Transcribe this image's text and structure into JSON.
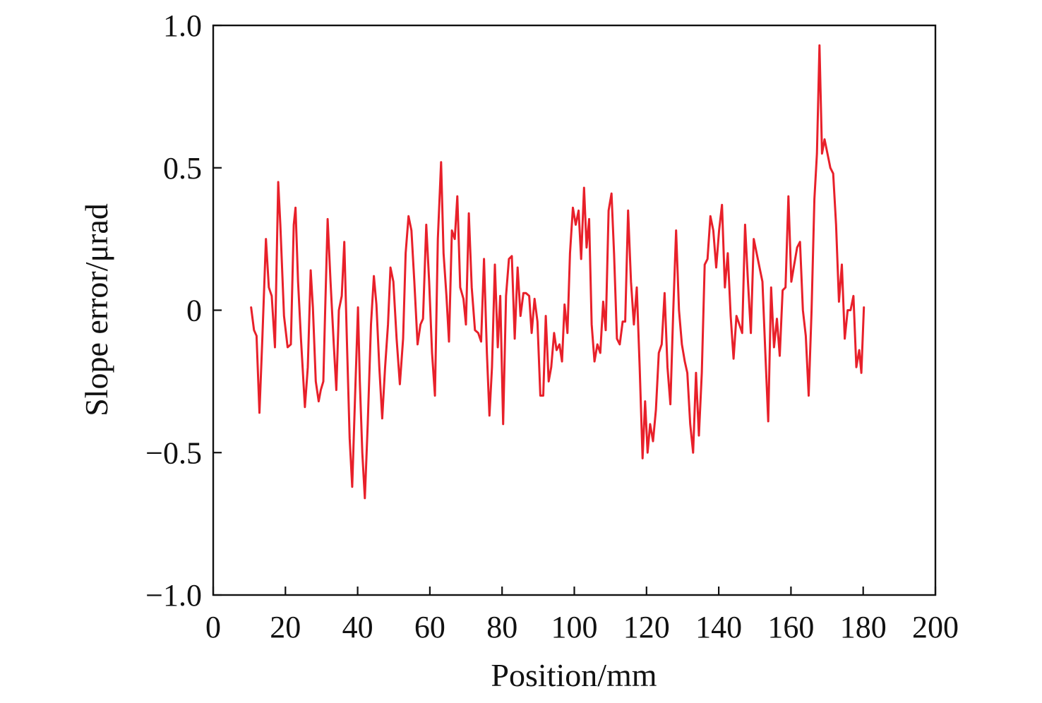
{
  "chart_data": {
    "type": "line",
    "title": "",
    "xlabel": "Position/mm",
    "ylabel": "Slope error/μrad",
    "xlim": [
      0,
      200
    ],
    "ylim": [
      -1.0,
      1.0
    ],
    "grid": false,
    "legend": "none",
    "x_ticks": [
      0,
      20,
      40,
      60,
      80,
      100,
      120,
      140,
      160,
      180,
      200
    ],
    "x_tick_labels": [
      "0",
      "20",
      "40",
      "60",
      "80",
      "100",
      "120",
      "140",
      "160",
      "180",
      "200"
    ],
    "y_ticks": [
      -1.0,
      -0.5,
      0,
      0.5,
      1.0
    ],
    "y_tick_labels": [
      "−1.0",
      "−0.5",
      "0",
      "0.5",
      "1.0"
    ],
    "series": [
      {
        "color": "#e8202a",
        "x": [
          10.5,
          11.3,
          12.0,
          12.8,
          13.6,
          14.6,
          15.4,
          16.2,
          17.1,
          18.0,
          18.6,
          19.6,
          20.6,
          21.5,
          22.3,
          22.8,
          23.5,
          24.3,
          25.4,
          26.2,
          27.0,
          27.6,
          28.4,
          29.2,
          29.8,
          30.5,
          31.0,
          31.7,
          32.5,
          33.4,
          34.1,
          34.8,
          35.6,
          36.3,
          37.0,
          37.8,
          38.5,
          39.3,
          40.1,
          40.6,
          41.3,
          42.0,
          42.8,
          43.7,
          44.5,
          45.2,
          46.0,
          46.8,
          47.6,
          48.4,
          49.1,
          49.9,
          50.8,
          51.7,
          52.6,
          53.3,
          54.1,
          54.9,
          55.7,
          56.6,
          57.4,
          58.1,
          59.0,
          59.8,
          60.6,
          61.4,
          62.2,
          63.1,
          63.8,
          64.6,
          65.3,
          66.1,
          66.9,
          67.6,
          68.4,
          69.3,
          70.0,
          70.8,
          71.6,
          72.5,
          73.4,
          74.2,
          75.0,
          75.8,
          76.5,
          77.2,
          78.0,
          78.8,
          79.5,
          80.3,
          81.1,
          81.9,
          82.7,
          83.5,
          84.3,
          85.1,
          85.9,
          86.6,
          87.5,
          88.2,
          89.0,
          89.8,
          90.6,
          91.4,
          92.1,
          92.9,
          93.6,
          94.4,
          95.1,
          95.9,
          96.6,
          97.3,
          98.1,
          98.8,
          99.6,
          100.4,
          101.2,
          101.9,
          102.7,
          103.4,
          104.1,
          104.8,
          105.6,
          106.4,
          107.2,
          108.0,
          108.7,
          109.5,
          110.3,
          111.0,
          111.8,
          112.6,
          113.4,
          114.1,
          114.9,
          115.7,
          116.5,
          117.3,
          118.1,
          118.9,
          119.6,
          120.3,
          121.0,
          121.8,
          122.6,
          123.4,
          124.2,
          125.0,
          125.8,
          126.6,
          127.4,
          128.2,
          129.0,
          129.8,
          130.6,
          131.3,
          132.1,
          132.9,
          133.7,
          134.5,
          135.3,
          136.1,
          136.9,
          137.7,
          138.5,
          139.3,
          140.1,
          140.9,
          141.7,
          142.5,
          143.3,
          144.1,
          144.9,
          145.7,
          146.5,
          147.3,
          148.1,
          148.9,
          149.7,
          150.5,
          151.3,
          152.1,
          152.9,
          153.7,
          154.5,
          155.3,
          156.1,
          156.9,
          157.7,
          158.5,
          159.3,
          160.1,
          160.9,
          161.7,
          162.5,
          163.3,
          164.1,
          164.9,
          165.7,
          166.5,
          167.2,
          167.9,
          168.6,
          169.3,
          170.1,
          170.9,
          171.7,
          172.5,
          173.3,
          174.1,
          174.9,
          175.7,
          176.5,
          177.3,
          178.1,
          178.9,
          179.5,
          180.2
        ],
        "y": [
          0.01,
          -0.07,
          -0.09,
          -0.36,
          -0.1,
          0.25,
          0.08,
          0.05,
          -0.13,
          0.45,
          0.3,
          -0.02,
          -0.13,
          -0.12,
          0.3,
          0.36,
          0.1,
          -0.1,
          -0.34,
          -0.2,
          0.14,
          0.01,
          -0.25,
          -0.32,
          -0.28,
          -0.25,
          0.0,
          0.32,
          0.1,
          -0.12,
          -0.28,
          0.0,
          0.05,
          0.24,
          -0.1,
          -0.45,
          -0.62,
          -0.3,
          0.01,
          -0.25,
          -0.5,
          -0.66,
          -0.4,
          -0.05,
          0.12,
          0.02,
          -0.2,
          -0.38,
          -0.2,
          -0.05,
          0.15,
          0.1,
          -0.1,
          -0.26,
          -0.1,
          0.2,
          0.33,
          0.28,
          0.1,
          -0.12,
          -0.05,
          -0.03,
          0.3,
          0.1,
          -0.15,
          -0.3,
          0.25,
          0.52,
          0.2,
          0.05,
          -0.11,
          0.28,
          0.25,
          0.4,
          0.08,
          0.04,
          -0.05,
          0.34,
          0.08,
          -0.07,
          -0.08,
          -0.11,
          0.18,
          -0.15,
          -0.37,
          -0.2,
          0.16,
          -0.13,
          0.05,
          -0.4,
          0.05,
          0.18,
          0.19,
          -0.1,
          0.15,
          -0.02,
          0.06,
          0.06,
          0.05,
          -0.08,
          0.04,
          -0.04,
          -0.3,
          -0.3,
          -0.02,
          -0.25,
          -0.2,
          -0.08,
          -0.14,
          -0.12,
          -0.18,
          0.02,
          -0.08,
          0.2,
          0.36,
          0.3,
          0.35,
          0.18,
          0.43,
          0.22,
          0.32,
          -0.05,
          -0.18,
          -0.12,
          -0.15,
          0.03,
          -0.07,
          0.35,
          0.41,
          0.2,
          -0.1,
          -0.12,
          -0.04,
          -0.04,
          0.35,
          0.1,
          -0.05,
          0.08,
          -0.2,
          -0.52,
          -0.32,
          -0.5,
          -0.4,
          -0.46,
          -0.35,
          -0.15,
          -0.12,
          0.06,
          -0.2,
          -0.33,
          0.0,
          0.28,
          0.0,
          -0.12,
          -0.18,
          -0.22,
          -0.4,
          -0.5,
          -0.22,
          -0.44,
          -0.22,
          0.16,
          0.18,
          0.33,
          0.28,
          0.15,
          0.28,
          0.37,
          0.08,
          0.2,
          -0.02,
          -0.17,
          -0.02,
          -0.05,
          -0.08,
          0.3,
          0.1,
          -0.08,
          0.25,
          0.2,
          0.15,
          0.1,
          -0.15,
          -0.39,
          0.08,
          -0.13,
          -0.03,
          -0.16,
          0.07,
          0.08,
          0.4,
          0.1,
          0.16,
          0.22,
          0.24,
          0.0,
          -0.09,
          -0.3,
          0.0,
          0.39,
          0.55,
          0.93,
          0.55,
          0.6,
          0.55,
          0.5,
          0.48,
          0.3,
          0.03,
          0.16,
          -0.1,
          0.0,
          0.0,
          0.05,
          -0.2,
          -0.14,
          -0.22,
          0.01
        ]
      }
    ]
  }
}
